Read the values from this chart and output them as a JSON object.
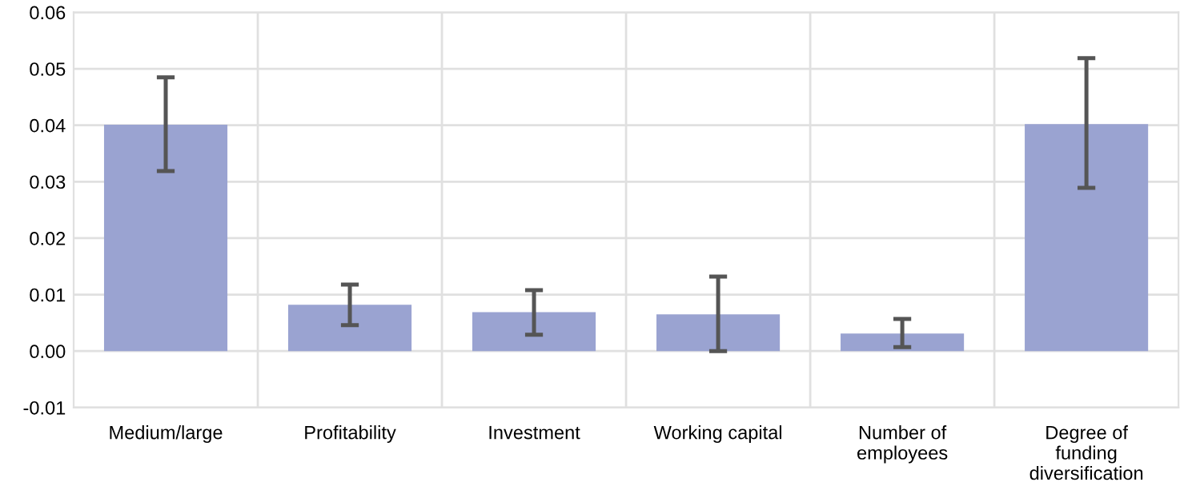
{
  "chart_data": {
    "type": "bar",
    "categories": [
      "Medium/large",
      "Profitability",
      "Investment",
      "Working capital",
      "Number of\nemployees",
      "Degree of\nfunding\ndiversification"
    ],
    "values": [
      0.0401,
      0.0082,
      0.0069,
      0.0065,
      0.0031,
      0.0402
    ],
    "errors": [
      [
        0.0319,
        0.0485
      ],
      [
        0.0046,
        0.0118
      ],
      [
        0.0029,
        0.0108
      ],
      [
        0.0,
        0.0132
      ],
      [
        0.0007,
        0.0057
      ],
      [
        0.0289,
        0.0519
      ]
    ],
    "color": "#9aa3d1",
    "ylim": [
      -0.01,
      0.06
    ],
    "yticks": [
      {
        "value": -0.01,
        "label": "-0.01"
      },
      {
        "value": 0,
        "label": "0.00"
      },
      {
        "value": 0.01,
        "label": "0.01"
      },
      {
        "value": 0.02,
        "label": "0.02"
      },
      {
        "value": 0.03,
        "label": "0.03"
      },
      {
        "value": 0.04,
        "label": "0.04"
      },
      {
        "value": 0.05,
        "label": "0.05"
      },
      {
        "value": 0.06,
        "label": "0.06"
      }
    ],
    "grid": true,
    "legend": false
  }
}
